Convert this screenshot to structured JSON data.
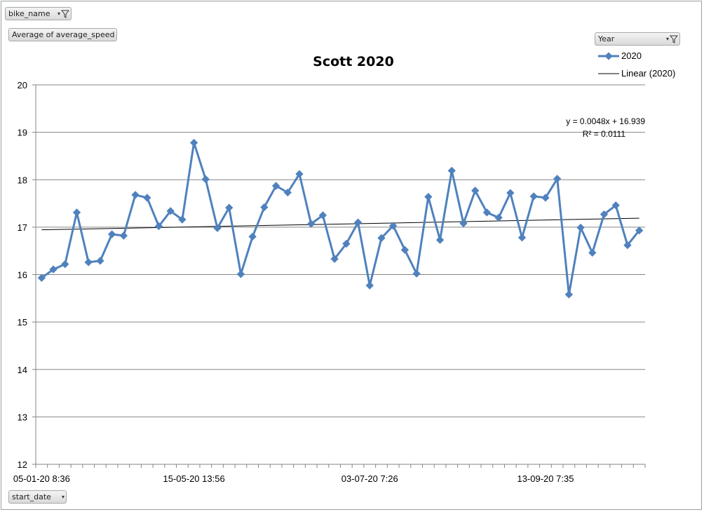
{
  "filters": {
    "bike_name": "bike_name",
    "value_field": "Average of average_speed",
    "year": "Year",
    "start_date": "start_date"
  },
  "chart_data": {
    "type": "line",
    "title": "Scott 2020",
    "ylim": [
      12,
      20
    ],
    "yticks": [
      "12",
      "13",
      "14",
      "15",
      "16",
      "17",
      "18",
      "19",
      "20"
    ],
    "xtick_labels": [
      "05-01-20 8:36",
      "15-05-20 13:56",
      "03-07-20 7:26",
      "13-09-20 7:35"
    ],
    "xtick_label_index": [
      0,
      13,
      28,
      43
    ],
    "legend_position": "top-right",
    "grid": true,
    "series": [
      {
        "name": "2020",
        "color": "#4f81bd",
        "values": [
          15.93,
          16.11,
          16.22,
          17.31,
          16.26,
          16.29,
          16.85,
          16.82,
          17.68,
          17.62,
          17.02,
          17.34,
          17.16,
          18.78,
          18.01,
          16.98,
          17.41,
          16.01,
          16.8,
          17.42,
          17.87,
          17.73,
          18.12,
          17.07,
          17.25,
          16.33,
          16.65,
          17.1,
          15.77,
          16.77,
          17.03,
          16.52,
          16.02,
          17.64,
          16.73,
          18.19,
          17.08,
          17.77,
          17.31,
          17.2,
          17.72,
          16.78,
          17.65,
          17.62,
          18.02,
          15.58,
          16.99,
          16.46,
          17.27,
          17.46,
          16.62,
          16.93
        ]
      }
    ],
    "trendline": {
      "name": "Linear (2020)",
      "color": "#000000",
      "slope": 0.0048,
      "intercept": 16.939,
      "equation": "y = 0.0048x + 16.939",
      "r2_label": "R² = 0.0111"
    }
  }
}
